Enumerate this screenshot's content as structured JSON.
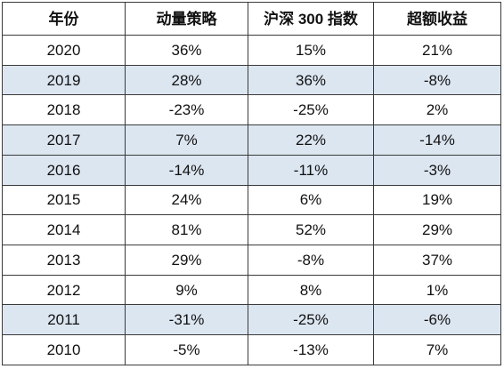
{
  "chart_data": {
    "type": "table",
    "columns": [
      "年份",
      "动量策略",
      "沪深 300 指数",
      "超额收益"
    ],
    "rows": [
      {
        "year": "2020",
        "momentum": "36%",
        "csi300": "15%",
        "excess": "21%",
        "shaded": false
      },
      {
        "year": "2019",
        "momentum": "28%",
        "csi300": "36%",
        "excess": "-8%",
        "shaded": true
      },
      {
        "year": "2018",
        "momentum": "-23%",
        "csi300": "-25%",
        "excess": "2%",
        "shaded": false
      },
      {
        "year": "2017",
        "momentum": "7%",
        "csi300": "22%",
        "excess": "-14%",
        "shaded": true
      },
      {
        "year": "2016",
        "momentum": "-14%",
        "csi300": "-11%",
        "excess": "-3%",
        "shaded": true
      },
      {
        "year": "2015",
        "momentum": "24%",
        "csi300": "6%",
        "excess": "19%",
        "shaded": false
      },
      {
        "year": "2014",
        "momentum": "81%",
        "csi300": "52%",
        "excess": "29%",
        "shaded": false
      },
      {
        "year": "2013",
        "momentum": "29%",
        "csi300": "-8%",
        "excess": "37%",
        "shaded": false
      },
      {
        "year": "2012",
        "momentum": "9%",
        "csi300": "8%",
        "excess": "1%",
        "shaded": false
      },
      {
        "year": "2011",
        "momentum": "-31%",
        "csi300": "-25%",
        "excess": "-6%",
        "shaded": true
      },
      {
        "year": "2010",
        "momentum": "-5%",
        "csi300": "-13%",
        "excess": "7%",
        "shaded": false
      }
    ]
  },
  "colors": {
    "row_shade": "#dce6f1",
    "border": "#3a3a3a",
    "text": "#111111"
  }
}
